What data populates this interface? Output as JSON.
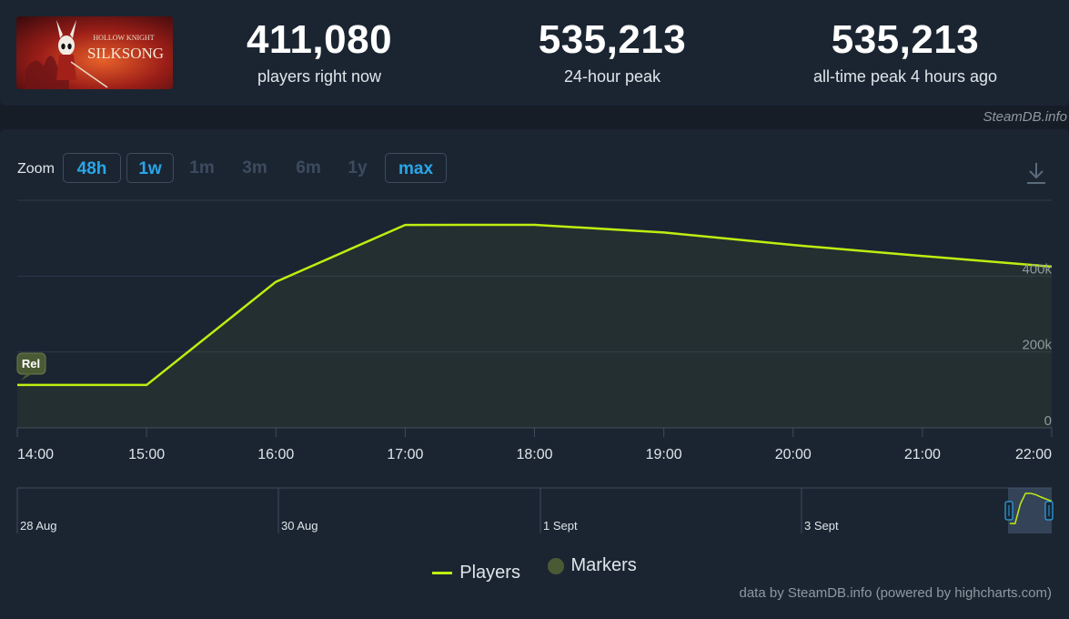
{
  "colors": {
    "background": "#161d27",
    "panel": "#1b2532",
    "players_line": "#beee11",
    "active_zoom": "#29a6e8",
    "marker": "#4a5a34"
  },
  "header": {
    "logo": {
      "line1": "HOLLOW KNIGHT",
      "line2": "SILKSONG"
    },
    "stats": [
      {
        "value": "411,080",
        "label": "players right now"
      },
      {
        "value": "535,213",
        "label": "24-hour peak"
      },
      {
        "value": "535,213",
        "label": "all-time peak 4 hours ago"
      }
    ],
    "watermark": "SteamDB.info"
  },
  "zoom": {
    "label": "Zoom",
    "buttons": [
      {
        "label": "48h",
        "active": true
      },
      {
        "label": "1w",
        "active": true
      },
      {
        "label": "1m",
        "active": false
      },
      {
        "label": "3m",
        "active": false
      },
      {
        "label": "6m",
        "active": false
      },
      {
        "label": "1y",
        "active": false
      },
      {
        "label": "max",
        "active": true
      }
    ],
    "download_icon": "download-icon"
  },
  "chart_data": {
    "type": "line",
    "title": "",
    "series": [
      {
        "name": "Players",
        "x": [
          "14:00",
          "15:00",
          "16:00",
          "17:00",
          "18:00",
          "19:00",
          "20:00",
          "21:00",
          "22:00"
        ],
        "values": [
          113000,
          113000,
          385000,
          535000,
          535213,
          515000,
          482000,
          453000,
          425000
        ]
      }
    ],
    "x_ticks": [
      "14:00",
      "15:00",
      "16:00",
      "17:00",
      "18:00",
      "19:00",
      "20:00",
      "21:00",
      "22:00"
    ],
    "y_ticks": [
      {
        "value": 0,
        "label": "0"
      },
      {
        "value": 200000,
        "label": "200k"
      },
      {
        "value": 400000,
        "label": "400k"
      }
    ],
    "ylim": [
      0,
      600000
    ],
    "grid": true,
    "markers": [
      {
        "x": "14:00",
        "label": "Rel"
      }
    ],
    "navigator": {
      "labels": [
        "28 Aug",
        "30 Aug",
        "1 Sept",
        "3 Sept"
      ]
    },
    "legend": {
      "position": "bottom-center",
      "items": [
        "Players",
        "Markers"
      ]
    },
    "credits": "data by SteamDB.info (powered by highcharts.com)"
  }
}
